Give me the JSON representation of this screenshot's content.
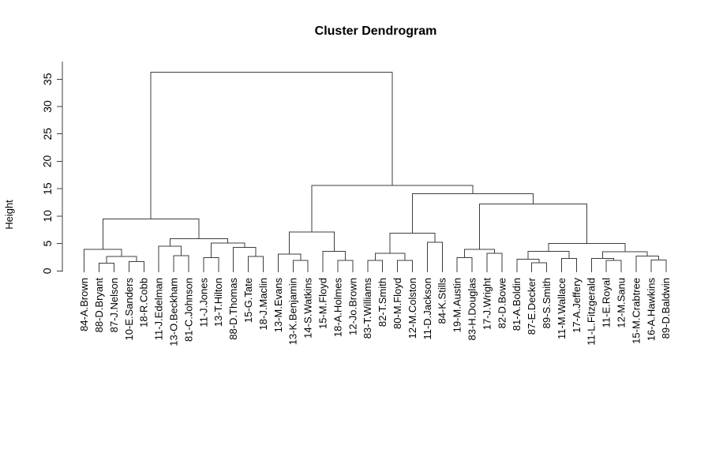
{
  "chart_data": {
    "type": "dendrogram",
    "title": "Cluster Dendrogram",
    "ylabel": "Height",
    "yticks": [
      0,
      5,
      10,
      15,
      20,
      25,
      30,
      35
    ],
    "ylim": [
      0,
      36.5
    ],
    "legend": "none",
    "grid": false,
    "num_leaves": 40,
    "root_height": 36.3,
    "leaves": [
      "84-A.Brown",
      "88-D.Bryant",
      "87-J.Nelson",
      "10-E.Sanders",
      "18-R.Cobb",
      "11-J.Edelman",
      "13-O.Beckham",
      "81-C.Johnson",
      "11-J.Jones",
      "13-T.Hilton",
      "88-D.Thomas",
      "15-G.Tate",
      "18-J.Maclin",
      "13-M.Evans",
      "13-K.Benjamin",
      "14-S.Watkins",
      "15-M.Floyd",
      "18-A.Holmes",
      "12-Jo.Brown",
      "83-T.Williams",
      "82-T.Smith",
      "80-M.Floyd",
      "12-M.Colston",
      "11-D.Jackson",
      "84-K.Stills",
      "19-M.Austin",
      "83-H.Douglas",
      "17-J.Wright",
      "82-D.Bowe",
      "81-A.Boldin",
      "87-E.Decker",
      "89-S.Smith",
      "11-M.Wallace",
      "17-A.Jeffery",
      "11-L.Fitzgerald",
      "11-E.Royal",
      "12-M.Sanu",
      "15-M.Crabtree",
      "16-A.Hawkins",
      "89-D.Baldwin"
    ],
    "tree": {
      "h": 36.3,
      "c": [
        {
          "h": 9.45,
          "c": [
            {
              "h": 3.9,
              "c": [
                {
                  "l": 0
                },
                {
                  "h": 2.6,
                  "c": [
                    {
                      "h": 1.4,
                      "c": [
                        {
                          "l": 1
                        },
                        {
                          "l": 2
                        }
                      ]
                    },
                    {
                      "h": 1.7,
                      "c": [
                        {
                          "l": 3
                        },
                        {
                          "l": 4
                        }
                      ]
                    }
                  ]
                }
              ]
            },
            {
              "h": 5.9,
              "c": [
                {
                  "h": 4.5,
                  "c": [
                    {
                      "l": 5
                    },
                    {
                      "h": 2.8,
                      "c": [
                        {
                          "l": 6
                        },
                        {
                          "l": 7
                        }
                      ]
                    }
                  ]
                },
                {
                  "h": 5.1,
                  "c": [
                    {
                      "h": 2.4,
                      "c": [
                        {
                          "l": 8
                        },
                        {
                          "l": 9
                        }
                      ]
                    },
                    {
                      "h": 4.3,
                      "c": [
                        {
                          "l": 10
                        },
                        {
                          "h": 2.6,
                          "c": [
                            {
                              "l": 11
                            },
                            {
                              "l": 12
                            }
                          ]
                        }
                      ]
                    }
                  ]
                }
              ]
            }
          ]
        },
        {
          "h": 15.6,
          "c": [
            {
              "h": 7.1,
              "c": [
                {
                  "h": 3.1,
                  "c": [
                    {
                      "l": 13
                    },
                    {
                      "h": 1.9,
                      "c": [
                        {
                          "l": 14
                        },
                        {
                          "l": 15
                        }
                      ]
                    }
                  ]
                },
                {
                  "h": 3.6,
                  "c": [
                    {
                      "l": 16
                    },
                    {
                      "h": 1.9,
                      "c": [
                        {
                          "l": 17
                        },
                        {
                          "l": 18
                        }
                      ]
                    }
                  ]
                }
              ]
            },
            {
              "h": 14.1,
              "c": [
                {
                  "h": 6.9,
                  "c": [
                    {
                      "h": 3.2,
                      "c": [
                        {
                          "h": 1.9,
                          "c": [
                            {
                              "l": 19
                            },
                            {
                              "l": 20
                            }
                          ]
                        },
                        {
                          "h": 1.9,
                          "c": [
                            {
                              "l": 21
                            },
                            {
                              "l": 22
                            }
                          ]
                        }
                      ]
                    },
                    {
                      "h": 5.2,
                      "c": [
                        {
                          "l": 23
                        },
                        {
                          "l": 24
                        }
                      ]
                    }
                  ]
                },
                {
                  "h": 12.2,
                  "c": [
                    {
                      "h": 3.9,
                      "c": [
                        {
                          "h": 2.4,
                          "c": [
                            {
                              "l": 25
                            },
                            {
                              "l": 26
                            }
                          ]
                        },
                        {
                          "h": 3.2,
                          "c": [
                            {
                              "l": 27
                            },
                            {
                              "l": 28
                            }
                          ]
                        }
                      ]
                    },
                    {
                      "h": 5.0,
                      "c": [
                        {
                          "h": 3.6,
                          "c": [
                            {
                              "h": 2.1,
                              "c": [
                                {
                                  "l": 29
                                },
                                {
                                  "h": 1.5,
                                  "c": [
                                    {
                                      "l": 30
                                    },
                                    {
                                      "l": 31
                                    }
                                  ]
                                }
                              ]
                            },
                            {
                              "h": 2.3,
                              "c": [
                                {
                                  "l": 32
                                },
                                {
                                  "l": 33
                                }
                              ]
                            }
                          ]
                        },
                        {
                          "h": 3.5,
                          "c": [
                            {
                              "h": 2.3,
                              "c": [
                                {
                                  "l": 34
                                },
                                {
                                  "h": 1.9,
                                  "c": [
                                    {
                                      "l": 35
                                    },
                                    {
                                      "l": 36
                                    }
                                  ]
                                }
                              ]
                            },
                            {
                              "h": 2.7,
                              "c": [
                                {
                                  "l": 37
                                },
                                {
                                  "h": 2.0,
                                  "c": [
                                    {
                                      "l": 38
                                    },
                                    {
                                      "l": 39
                                    }
                                  ]
                                }
                              ]
                            }
                          ]
                        }
                      ]
                    }
                  ]
                }
              ]
            }
          ]
        }
      ]
    }
  }
}
